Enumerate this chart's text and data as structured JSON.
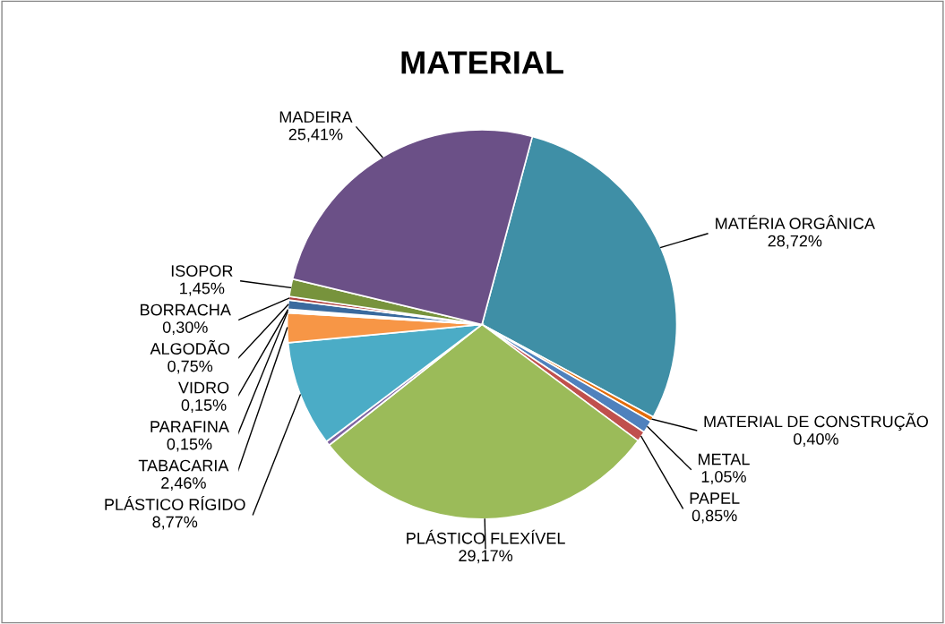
{
  "chart_data": {
    "type": "pie",
    "title": "MATERIAL",
    "categories": [
      "MATÉRIA ORGÂNICA",
      "MATERIAL DE CONSTRUÇÃO",
      "METAL",
      "PAPEL",
      "PLÁSTICO FLEXÍVEL",
      null,
      "PLÁSTICO RÍGIDO",
      "TABACARIA",
      "PARAFINA",
      "VIDRO",
      "ALGODÃO",
      "BORRACHA",
      "ISOPOR",
      "MADEIRA"
    ],
    "values": [
      28.72,
      0.4,
      1.05,
      0.85,
      29.17,
      0.37,
      8.77,
      2.46,
      0.15,
      0.15,
      0.75,
      0.3,
      1.45,
      25.41
    ],
    "value_labels": [
      "28,72%",
      "0,40%",
      "1,05%",
      "0,85%",
      "29,17%",
      null,
      "8,77%",
      "2,46%",
      "0,15%",
      "0,15%",
      "0,75%",
      "0,30%",
      "1,45%",
      "25,41%"
    ],
    "colors": [
      "#3f8fa6",
      "#e36c0a",
      "#4f81bd",
      "#c0504d",
      "#9bbb59",
      "#8064a2",
      "#4bacc6",
      "#f79646",
      "#dbe5f1",
      "#f2f2f2",
      "#3a6a9e",
      "#b0413e",
      "#77933c",
      "#6b5087"
    ]
  }
}
